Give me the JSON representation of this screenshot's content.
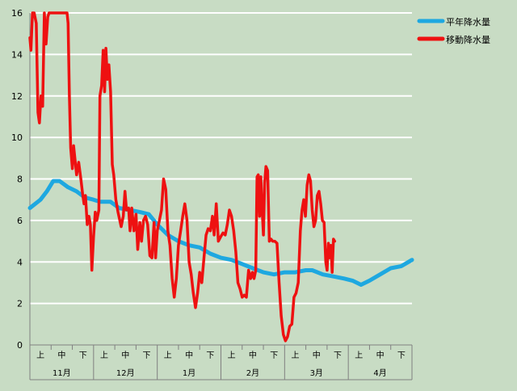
{
  "chart_data": {
    "type": "line",
    "title": "",
    "xlabel": "",
    "ylabel": "",
    "ylim": [
      0,
      16
    ],
    "yticks": [
      0,
      2,
      4,
      6,
      8,
      10,
      12,
      14,
      16
    ],
    "grid": true,
    "legend_position": "top-right",
    "colors": {
      "background": "#c8dcc4",
      "grid": "#ffffff",
      "axis": "#808080"
    },
    "x_range": [
      0,
      18
    ],
    "sub_ticks": [
      "上",
      "中",
      "下",
      "上",
      "中",
      "下",
      "上",
      "中",
      "下",
      "上",
      "中",
      "下",
      "上",
      "中",
      "下",
      "上",
      "中",
      "下"
    ],
    "months": [
      "11月",
      "12月",
      "1月",
      "2月",
      "3月",
      "4月"
    ],
    "series": [
      {
        "name": "平年降水量",
        "color": "#1ea8e0",
        "points": [
          [
            0,
            6.6
          ],
          [
            0.5,
            7.0
          ],
          [
            0.8,
            7.4
          ],
          [
            1.1,
            7.9
          ],
          [
            1.4,
            7.9
          ],
          [
            1.8,
            7.6
          ],
          [
            2.2,
            7.4
          ],
          [
            2.6,
            7.1
          ],
          [
            3.0,
            7.0
          ],
          [
            3.3,
            6.9
          ],
          [
            3.8,
            6.9
          ],
          [
            4.2,
            6.6
          ],
          [
            4.7,
            6.5
          ],
          [
            5.2,
            6.4
          ],
          [
            5.6,
            6.3
          ],
          [
            6.0,
            5.8
          ],
          [
            6.5,
            5.3
          ],
          [
            7.0,
            5.0
          ],
          [
            7.5,
            4.8
          ],
          [
            8.0,
            4.7
          ],
          [
            8.5,
            4.4
          ],
          [
            9.0,
            4.2
          ],
          [
            9.5,
            4.1
          ],
          [
            10.0,
            3.9
          ],
          [
            10.5,
            3.7
          ],
          [
            11.0,
            3.5
          ],
          [
            11.5,
            3.4
          ],
          [
            12.0,
            3.5
          ],
          [
            12.5,
            3.5
          ],
          [
            13.0,
            3.6
          ],
          [
            13.3,
            3.6
          ],
          [
            13.8,
            3.4
          ],
          [
            14.3,
            3.3
          ],
          [
            14.8,
            3.2
          ],
          [
            15.2,
            3.1
          ],
          [
            15.6,
            2.9
          ],
          [
            16.0,
            3.1
          ],
          [
            16.5,
            3.4
          ],
          [
            17.0,
            3.7
          ],
          [
            17.5,
            3.8
          ],
          [
            18.0,
            4.1
          ]
        ]
      },
      {
        "name": "移動降水量",
        "color": "#ee1111",
        "points": [
          [
            0,
            14.8
          ],
          [
            0.05,
            14.2
          ],
          [
            0.12,
            16.2
          ],
          [
            0.2,
            16.2
          ],
          [
            0.3,
            15.5
          ],
          [
            0.38,
            11.2
          ],
          [
            0.45,
            10.7
          ],
          [
            0.52,
            12.0
          ],
          [
            0.6,
            11.5
          ],
          [
            0.68,
            16.0
          ],
          [
            0.76,
            14.5
          ],
          [
            0.84,
            15.8
          ],
          [
            0.9,
            16.2
          ],
          [
            1.0,
            16.2
          ],
          [
            1.15,
            16.2
          ],
          [
            1.3,
            16.2
          ],
          [
            1.45,
            16.2
          ],
          [
            1.6,
            16.2
          ],
          [
            1.75,
            16.2
          ],
          [
            1.8,
            15.5
          ],
          [
            1.86,
            12.0
          ],
          [
            1.92,
            9.5
          ],
          [
            2.0,
            8.5
          ],
          [
            2.06,
            9.6
          ],
          [
            2.12,
            9.0
          ],
          [
            2.2,
            8.2
          ],
          [
            2.3,
            8.8
          ],
          [
            2.4,
            8.0
          ],
          [
            2.48,
            7.3
          ],
          [
            2.55,
            6.8
          ],
          [
            2.62,
            7.2
          ],
          [
            2.7,
            5.8
          ],
          [
            2.78,
            6.2
          ],
          [
            2.85,
            5.8
          ],
          [
            2.92,
            3.6
          ],
          [
            3.0,
            5.2
          ],
          [
            3.08,
            6.4
          ],
          [
            3.15,
            6.0
          ],
          [
            3.25,
            6.5
          ],
          [
            3.3,
            12.0
          ],
          [
            3.38,
            12.5
          ],
          [
            3.45,
            14.2
          ],
          [
            3.52,
            12.2
          ],
          [
            3.58,
            14.3
          ],
          [
            3.65,
            12.8
          ],
          [
            3.72,
            13.5
          ],
          [
            3.8,
            12.2
          ],
          [
            3.88,
            8.7
          ],
          [
            3.95,
            8.2
          ],
          [
            4.05,
            7.0
          ],
          [
            4.15,
            6.4
          ],
          [
            4.3,
            5.7
          ],
          [
            4.4,
            6.2
          ],
          [
            4.48,
            7.4
          ],
          [
            4.55,
            6.5
          ],
          [
            4.65,
            6.6
          ],
          [
            4.72,
            5.5
          ],
          [
            4.8,
            6.6
          ],
          [
            4.9,
            5.5
          ],
          [
            5.0,
            6.3
          ],
          [
            5.08,
            4.6
          ],
          [
            5.18,
            5.9
          ],
          [
            5.26,
            5.0
          ],
          [
            5.35,
            6.0
          ],
          [
            5.45,
            6.2
          ],
          [
            5.55,
            5.8
          ],
          [
            5.65,
            4.3
          ],
          [
            5.75,
            4.2
          ],
          [
            5.85,
            5.9
          ],
          [
            5.92,
            4.2
          ],
          [
            6.0,
            5.5
          ],
          [
            6.1,
            6.0
          ],
          [
            6.2,
            6.5
          ],
          [
            6.3,
            8.0
          ],
          [
            6.4,
            7.5
          ],
          [
            6.5,
            5.5
          ],
          [
            6.6,
            4.8
          ],
          [
            6.7,
            3.2
          ],
          [
            6.8,
            2.3
          ],
          [
            6.9,
            3.2
          ],
          [
            7.0,
            4.8
          ],
          [
            7.1,
            5.5
          ],
          [
            7.2,
            6.2
          ],
          [
            7.3,
            6.8
          ],
          [
            7.4,
            6.0
          ],
          [
            7.5,
            4.0
          ],
          [
            7.6,
            3.4
          ],
          [
            7.7,
            2.5
          ],
          [
            7.8,
            1.8
          ],
          [
            7.9,
            2.5
          ],
          [
            8.0,
            3.5
          ],
          [
            8.1,
            3.0
          ],
          [
            8.2,
            4.2
          ],
          [
            8.3,
            5.3
          ],
          [
            8.4,
            5.6
          ],
          [
            8.5,
            5.5
          ],
          [
            8.6,
            6.2
          ],
          [
            8.68,
            5.3
          ],
          [
            8.78,
            6.8
          ],
          [
            8.88,
            5.0
          ],
          [
            8.98,
            5.2
          ],
          [
            9.1,
            5.4
          ],
          [
            9.2,
            5.3
          ],
          [
            9.3,
            5.8
          ],
          [
            9.4,
            6.5
          ],
          [
            9.5,
            6.2
          ],
          [
            9.6,
            5.5
          ],
          [
            9.7,
            4.5
          ],
          [
            9.8,
            3.0
          ],
          [
            9.9,
            2.7
          ],
          [
            10.0,
            2.3
          ],
          [
            10.1,
            2.4
          ],
          [
            10.2,
            2.3
          ],
          [
            10.3,
            3.6
          ],
          [
            10.4,
            3.2
          ],
          [
            10.48,
            3.5
          ],
          [
            10.56,
            3.2
          ],
          [
            10.64,
            3.6
          ],
          [
            10.7,
            8.1
          ],
          [
            10.76,
            8.2
          ],
          [
            10.82,
            6.2
          ],
          [
            10.88,
            8.1
          ],
          [
            10.94,
            6.5
          ],
          [
            11.0,
            5.3
          ],
          [
            11.06,
            7.8
          ],
          [
            11.12,
            8.6
          ],
          [
            11.2,
            8.4
          ],
          [
            11.28,
            5.0
          ],
          [
            11.36,
            5.1
          ],
          [
            11.44,
            5.0
          ],
          [
            11.54,
            5.0
          ],
          [
            11.64,
            4.9
          ],
          [
            11.74,
            3.0
          ],
          [
            11.84,
            1.4
          ],
          [
            11.94,
            0.5
          ],
          [
            12.04,
            0.2
          ],
          [
            12.14,
            0.4
          ],
          [
            12.24,
            0.9
          ],
          [
            12.34,
            1.0
          ],
          [
            12.44,
            2.3
          ],
          [
            12.54,
            2.5
          ],
          [
            12.64,
            3.0
          ],
          [
            12.74,
            5.5
          ],
          [
            12.82,
            6.5
          ],
          [
            12.9,
            7.0
          ],
          [
            12.98,
            6.2
          ],
          [
            13.06,
            7.7
          ],
          [
            13.14,
            8.2
          ],
          [
            13.22,
            7.9
          ],
          [
            13.3,
            6.5
          ],
          [
            13.38,
            5.7
          ],
          [
            13.46,
            6.0
          ],
          [
            13.54,
            7.2
          ],
          [
            13.62,
            7.4
          ],
          [
            13.7,
            6.8
          ],
          [
            13.78,
            6.0
          ],
          [
            13.86,
            5.9
          ],
          [
            13.94,
            4.0
          ],
          [
            14.0,
            3.6
          ],
          [
            14.06,
            4.9
          ],
          [
            14.12,
            4.2
          ],
          [
            14.18,
            4.8
          ],
          [
            14.24,
            3.5
          ],
          [
            14.3,
            5.1
          ],
          [
            14.36,
            5.0
          ]
        ]
      }
    ]
  }
}
